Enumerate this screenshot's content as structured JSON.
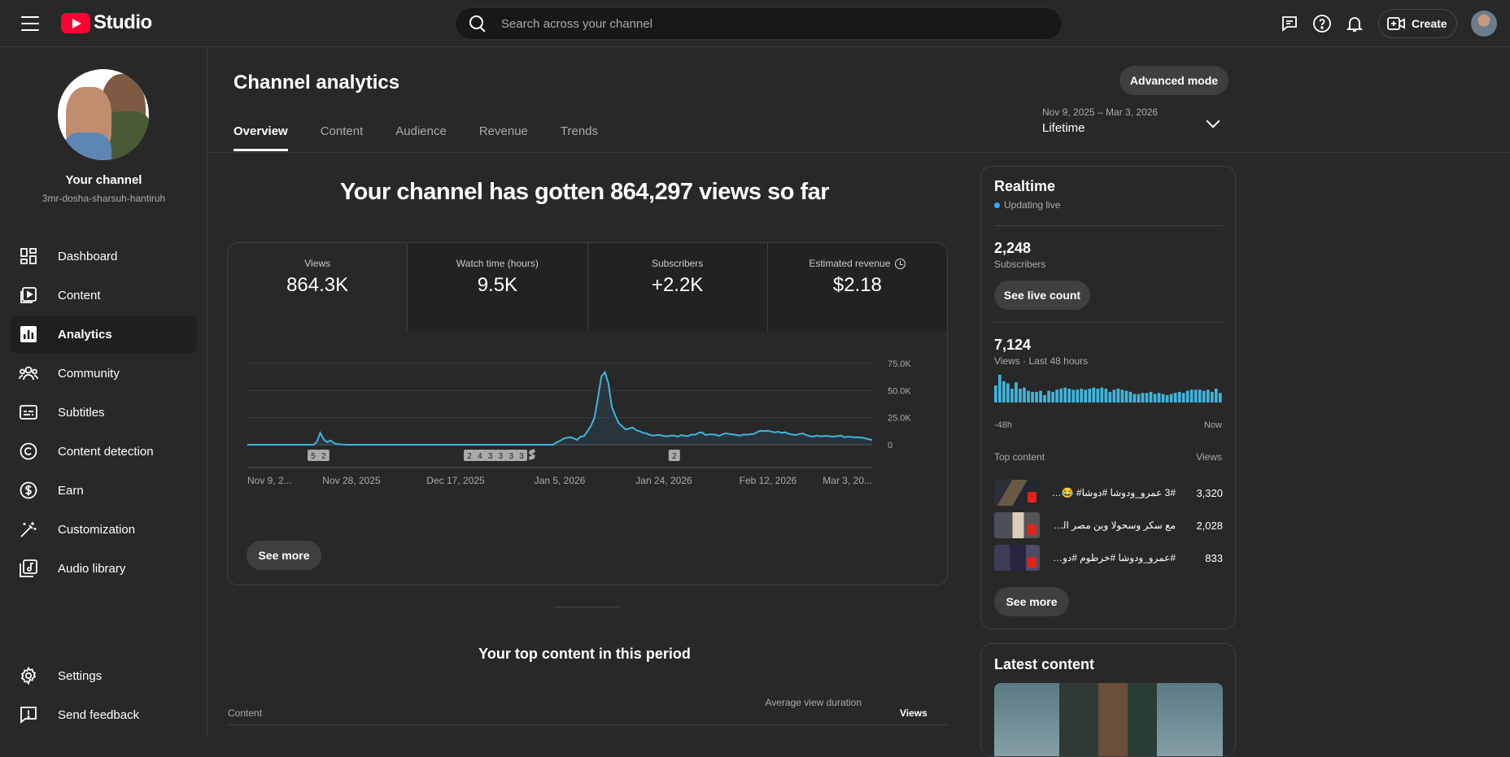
{
  "app": {
    "logo_text": "Studio"
  },
  "search": {
    "placeholder": "Search across your channel"
  },
  "header": {
    "create_label": "Create"
  },
  "sidebar": {
    "channel_title": "Your channel",
    "channel_handle": "3mr-dosha-sharsuh-hantiruh",
    "items": [
      {
        "label": "Dashboard",
        "icon": "dashboard-icon"
      },
      {
        "label": "Content",
        "icon": "content-icon"
      },
      {
        "label": "Analytics",
        "icon": "analytics-icon",
        "active": true
      },
      {
        "label": "Community",
        "icon": "community-icon"
      },
      {
        "label": "Subtitles",
        "icon": "subtitles-icon"
      },
      {
        "label": "Content detection",
        "icon": "copyright-icon"
      },
      {
        "label": "Earn",
        "icon": "earn-icon"
      },
      {
        "label": "Customization",
        "icon": "customization-icon"
      },
      {
        "label": "Audio library",
        "icon": "audio-library-icon"
      }
    ],
    "bottom_items": [
      {
        "label": "Settings",
        "icon": "settings-icon"
      },
      {
        "label": "Send feedback",
        "icon": "feedback-icon"
      }
    ]
  },
  "page": {
    "title": "Channel analytics",
    "advanced_mode_label": "Advanced mode",
    "tabs": [
      "Overview",
      "Content",
      "Audience",
      "Revenue",
      "Trends"
    ],
    "period_range": "Nov 9, 2025 – Mar 3, 2026",
    "period_label": "Lifetime",
    "headline": "Your channel has gotten 864,297 views so far",
    "see_more_label": "See more"
  },
  "metrics": [
    {
      "label": "Views",
      "value": "864.3K"
    },
    {
      "label": "Watch time (hours)",
      "value": "9.5K"
    },
    {
      "label": "Subscribers",
      "value": "+2.2K"
    },
    {
      "label": "Estimated revenue",
      "value": "$2.18"
    }
  ],
  "chart_data": {
    "type": "line",
    "title": "",
    "xlabel": "",
    "ylabel": "",
    "x_tick_labels": [
      "Nov 9, 2...",
      "Nov 28, 2025",
      "Dec 17, 2025",
      "Jan 5, 2026",
      "Jan 24, 2026",
      "Feb 12, 2026",
      "Mar 3, 20..."
    ],
    "y_tick_labels": [
      "75.0K",
      "50.0K",
      "25.0K",
      "0"
    ],
    "ylim": [
      0,
      75000
    ],
    "grid": true,
    "series": [
      {
        "values": [
          0,
          0,
          0,
          0,
          0,
          0,
          0,
          0,
          0,
          0,
          0,
          0,
          0,
          0,
          0,
          0,
          0,
          0,
          0,
          0,
          2500,
          11000,
          5000,
          2500,
          4000,
          1500,
          600,
          300,
          150,
          0,
          0,
          0,
          0,
          0,
          0,
          0,
          0,
          0,
          0,
          0,
          0,
          0,
          0,
          0,
          0,
          0,
          0,
          0,
          0,
          0,
          0,
          0,
          0,
          0,
          0,
          0,
          0,
          0,
          0,
          0,
          0,
          0,
          0,
          0,
          0,
          0,
          0,
          0,
          0,
          0,
          0,
          0,
          0,
          0,
          0,
          0,
          0,
          0,
          0,
          0,
          0,
          0,
          0,
          0,
          0,
          0,
          0,
          0,
          0,
          2000,
          3500,
          5500,
          6500,
          7000,
          6000,
          4500,
          7500,
          8000,
          12500,
          17500,
          25000,
          43000,
          63000,
          67000,
          57000,
          35000,
          27000,
          20000,
          17000,
          14000,
          15000,
          16000,
          13500,
          12500,
          11000,
          10500,
          9000,
          8500,
          9000,
          9000,
          8000,
          7800,
          8500,
          8500,
          7500,
          9000,
          8200,
          8000,
          9500,
          9200,
          11000,
          11500,
          9000,
          9500,
          9500,
          9200,
          8200,
          10000,
          10500,
          9800,
          9500,
          9000,
          8500,
          9500,
          9200,
          9800,
          10000,
          12000,
          13000,
          12500,
          13000,
          12000,
          11500,
          12000,
          11000,
          11500,
          10000,
          9500,
          9000,
          10000,
          10500,
          9000,
          8000,
          7500,
          8500,
          7800,
          8000,
          8200,
          7800,
          7500,
          8000,
          8500,
          7000,
          7500,
          7200,
          7000,
          6800,
          6500,
          6000,
          5000,
          4500
        ]
      }
    ],
    "markers": [
      {
        "label": "5",
        "index": 19
      },
      {
        "label": "2",
        "index": 22
      },
      {
        "label": "2",
        "index": 64
      },
      {
        "label": "4",
        "index": 67
      },
      {
        "label": "3",
        "index": 70
      },
      {
        "label": "3",
        "index": 73
      },
      {
        "label": "3",
        "index": 76
      },
      {
        "label": "3",
        "index": 79
      },
      {
        "label": "2",
        "index": 123
      }
    ]
  },
  "realtime": {
    "title": "Realtime",
    "status": "Updating live",
    "subscribers_value": "2,248",
    "subscribers_label": "Subscribers",
    "see_live_count_label": "See live count",
    "views_value": "7,124",
    "views_label": "Views · Last 48 hours",
    "axis_start": "-48h",
    "axis_end": "Now",
    "bar_values": [
      16,
      26,
      20,
      18,
      13,
      19,
      13,
      14,
      11,
      10,
      10,
      11,
      7,
      11,
      10,
      12,
      13,
      14,
      13,
      12,
      12,
      13,
      12,
      13,
      14,
      13,
      14,
      13,
      10,
      12,
      13,
      12,
      11,
      10,
      8,
      8,
      9,
      9,
      10,
      8,
      9,
      8,
      7,
      8,
      9,
      10,
      9,
      11,
      12,
      12,
      12,
      11,
      12,
      10,
      13,
      9
    ],
    "top_content_label": "Top content",
    "top_views_label": "Views",
    "top_items": [
      {
        "title": "3# عمرو_ودوشا #دوشا# 😂 #...",
        "views": "3,320"
      },
      {
        "title": "مع سكر وسحولا وين مصر الرجاله...",
        "views": "2,028"
      },
      {
        "title": "#عمرو_ودوشا #خرطوم #دوشا ...",
        "views": "833"
      }
    ],
    "see_more_label": "See more"
  },
  "latest_content": {
    "title": "Latest content"
  },
  "top_content": {
    "title": "Your top content in this period",
    "col_content": "Content",
    "col_avd": "Average view duration",
    "col_views": "Views"
  }
}
